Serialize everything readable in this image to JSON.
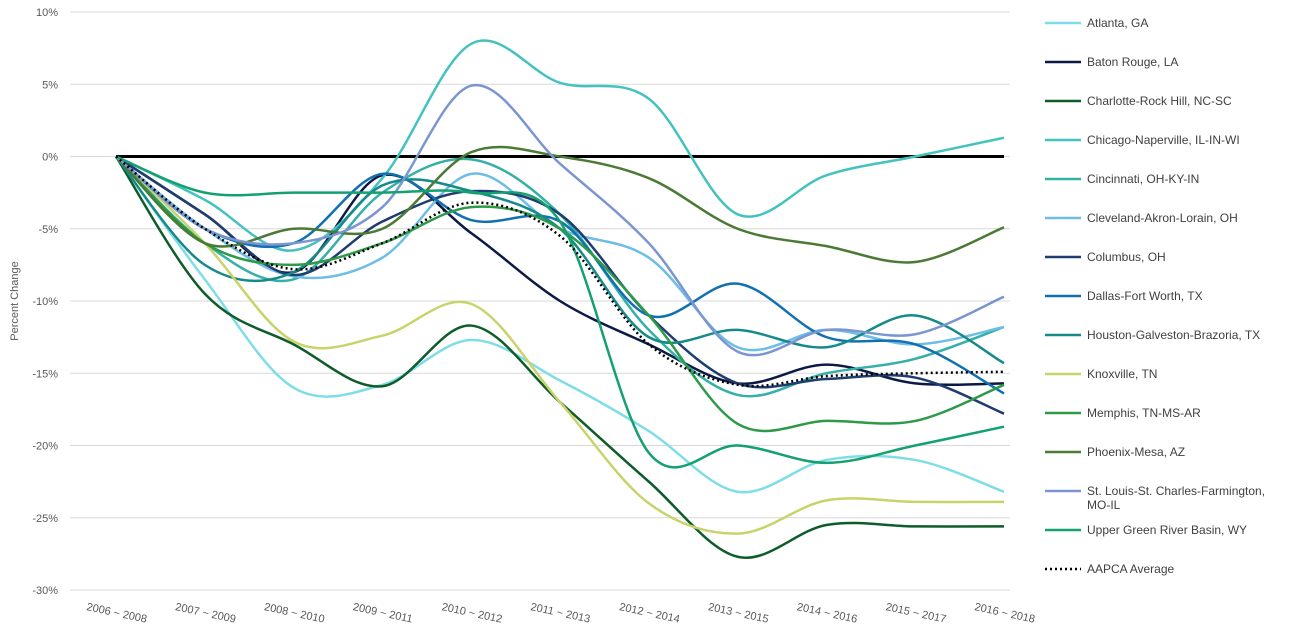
{
  "chart_data": {
    "type": "line",
    "y_label": "Percent Change",
    "categories": [
      "2006 ~ 2008",
      "2007 ~ 2009",
      "2008 ~ 2010",
      "2009 ~ 2011",
      "2010 ~ 2012",
      "2011 ~ 2013",
      "2012 ~ 2014",
      "2013 ~ 2015",
      "2014 ~ 2016",
      "2015 ~ 2017",
      "2016 ~ 2018"
    ],
    "ylim": [
      -30,
      10
    ],
    "yticks": [
      {
        "value": 10,
        "label": "10%"
      },
      {
        "value": 5,
        "label": "5%"
      },
      {
        "value": 0,
        "label": "0%"
      },
      {
        "value": -5,
        "label": "-5%"
      },
      {
        "value": -10,
        "label": "-10%"
      },
      {
        "value": -15,
        "label": "-15%"
      },
      {
        "value": -20,
        "label": "-20%"
      },
      {
        "value": -25,
        "label": "-25%"
      },
      {
        "value": -30,
        "label": "-30%"
      }
    ],
    "grid": true,
    "legend": "right",
    "series": [
      {
        "name": "Atlanta, GA",
        "color": "#7fdde8",
        "values": [
          0,
          -8.5,
          -16,
          -15.8,
          -12.7,
          -15.5,
          -19,
          -23.2,
          -21,
          -21,
          -23.2
        ]
      },
      {
        "name": "Baton Rouge, LA",
        "color": "#0b1a45",
        "values": [
          0,
          -4,
          -8,
          -1.3,
          -5.3,
          -10,
          -13,
          -15.7,
          -14.4,
          -15.7,
          -15.7
        ]
      },
      {
        "name": "Charlotte-Rock Hill, NC-SC",
        "color": "#0d5c2a",
        "values": [
          0,
          -9.5,
          -13,
          -15.9,
          -11.7,
          -17,
          -22.5,
          -27.7,
          -25.5,
          -25.6,
          -25.6
        ]
      },
      {
        "name": "Chicago-Naperville, IL-IN-WI",
        "color": "#44c2bf",
        "values": [
          0,
          -3,
          -6.5,
          -1.5,
          7.8,
          5.1,
          4,
          -4,
          -1.3,
          0,
          1.3
        ]
      },
      {
        "name": "Cincinnati, OH-KY-IN",
        "color": "#35b0a8",
        "values": [
          0,
          -6,
          -8.5,
          -2.5,
          -0.2,
          -4,
          -12,
          -16.5,
          -15,
          -14,
          -11.8
        ]
      },
      {
        "name": "Cleveland-Akron-Lorain, OH",
        "color": "#6dbde6",
        "values": [
          0,
          -5,
          -8.3,
          -7,
          -1.2,
          -5,
          -7,
          -13.2,
          -12,
          -13,
          -11.8
        ]
      },
      {
        "name": "Columbus, OH",
        "color": "#1f3d6e",
        "values": [
          0,
          -4,
          -8.2,
          -4.5,
          -2.4,
          -4,
          -11,
          -15.7,
          -15.4,
          -15.3,
          -17.8
        ]
      },
      {
        "name": "Dallas-Fort Worth, TX",
        "color": "#1170b0",
        "values": [
          0,
          -5,
          -6,
          -1.2,
          -4.4,
          -4.5,
          -11,
          -8.8,
          -12.5,
          -13,
          -16.4
        ]
      },
      {
        "name": "Houston-Galveston-Brazoria, TX",
        "color": "#168a8a",
        "values": [
          0,
          -7.5,
          -8,
          -2,
          -2.4,
          -5,
          -12.5,
          -12,
          -13.2,
          -11,
          -14.3
        ]
      },
      {
        "name": "Knoxville, TN",
        "color": "#c8d46a",
        "values": [
          0,
          -6,
          -12.8,
          -12.4,
          -10.2,
          -17,
          -24,
          -26.1,
          -23.8,
          -23.9,
          -23.9
        ]
      },
      {
        "name": "Memphis, TN-MS-AR",
        "color": "#2e9a48",
        "values": [
          0,
          -6,
          -7.5,
          -6,
          -3.5,
          -5,
          -11,
          -18.5,
          -18.3,
          -18.3,
          -15.8
        ]
      },
      {
        "name": "Phoenix-Mesa, AZ",
        "color": "#4a7a35",
        "values": [
          0,
          -6,
          -5,
          -5,
          0.3,
          0,
          -1.5,
          -5,
          -6.2,
          -7.3,
          -4.9
        ]
      },
      {
        "name": "St. Louis-St. Charles-Farmington, MO-IL",
        "color": "#7b95d0",
        "values": [
          0,
          -5,
          -6,
          -3.5,
          4.9,
          -0.5,
          -6,
          -13.5,
          -12,
          -12.3,
          -9.7
        ]
      },
      {
        "name": "Upper Green River Basin, WY",
        "color": "#14a070",
        "values": [
          0,
          -2.5,
          -2.5,
          -2.5,
          -2.5,
          -4.5,
          -20.5,
          -20,
          -21.2,
          -20,
          -18.7
        ]
      },
      {
        "name": "AAPCA Average",
        "color": "#000000",
        "dotted": true,
        "values": [
          0,
          -5,
          -7.8,
          -6,
          -3.2,
          -5.5,
          -13,
          -15.8,
          -15.2,
          -15,
          -14.9
        ]
      }
    ]
  }
}
